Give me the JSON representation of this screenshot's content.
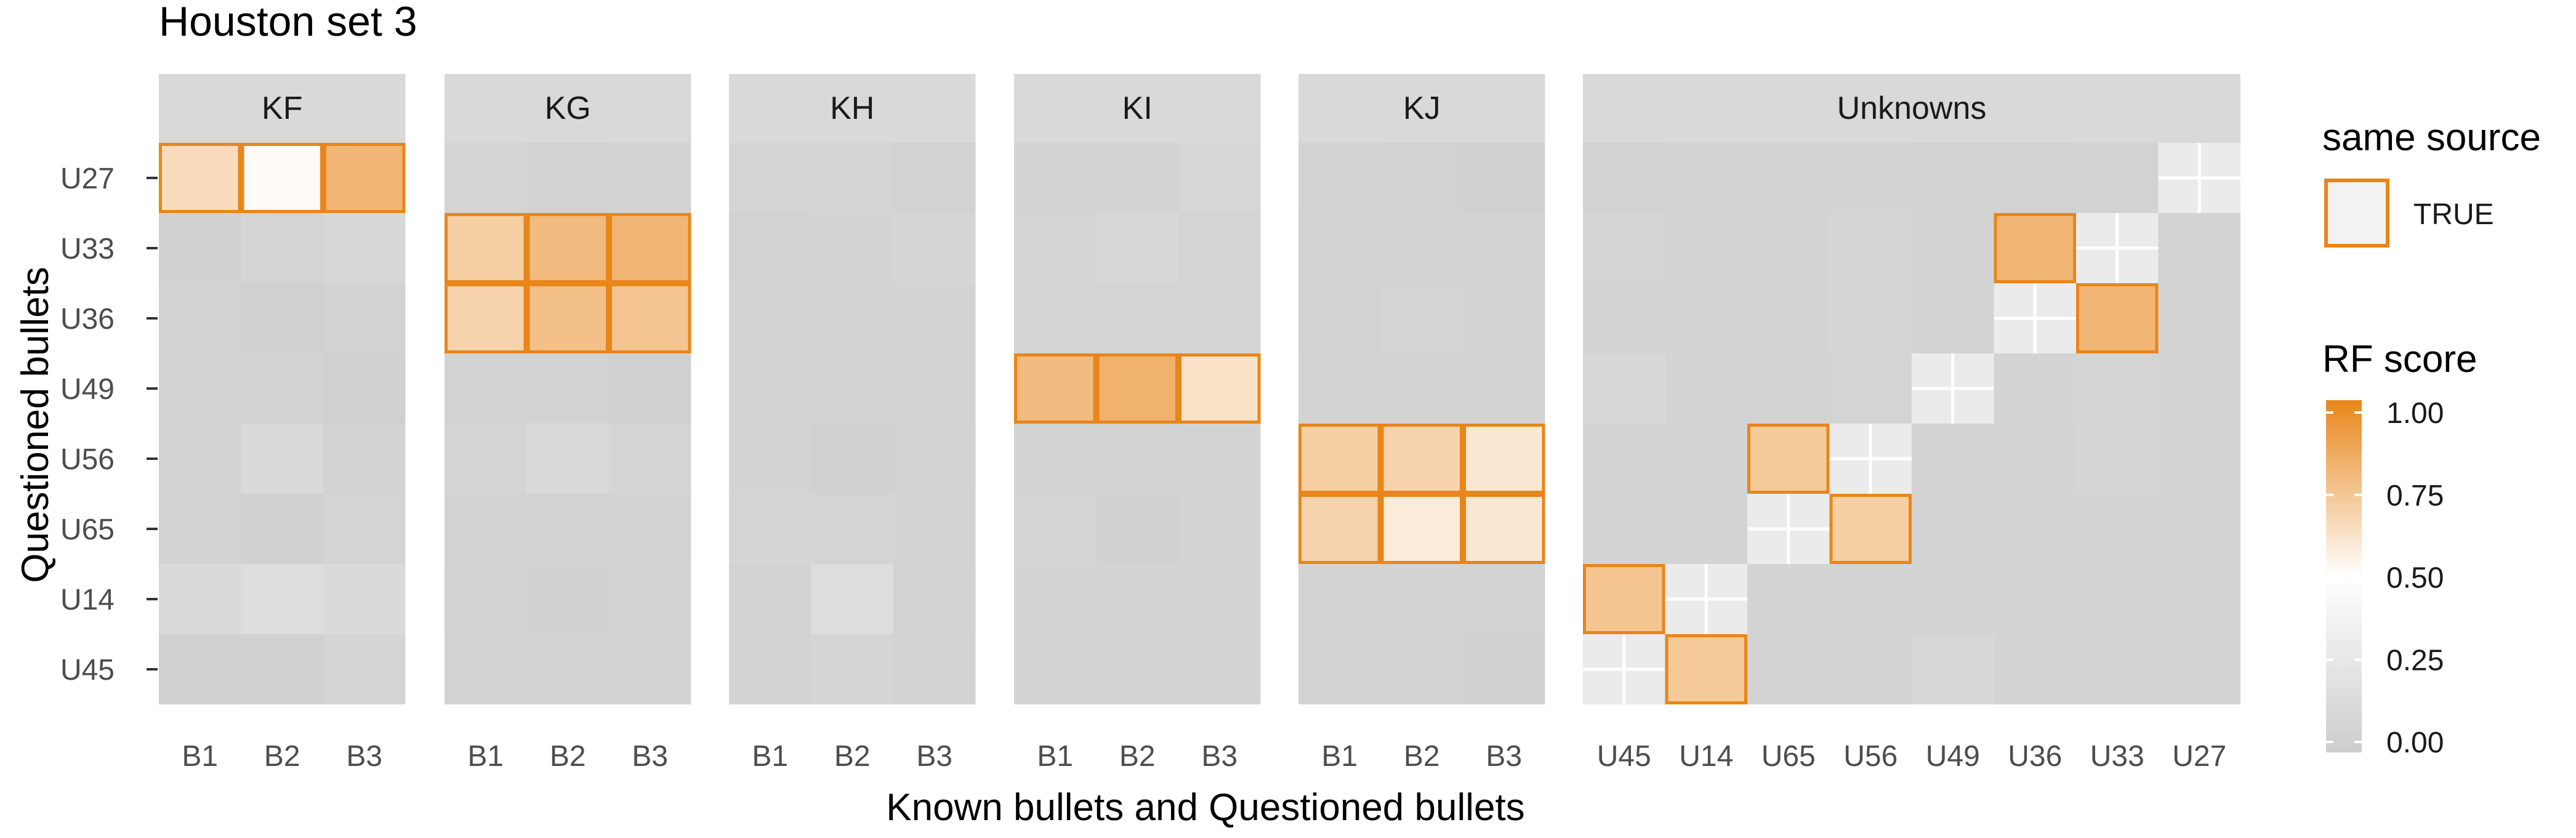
{
  "chart_data": {
    "type": "heatmap",
    "title": "Houston set 3",
    "xlabel": "Known bullets and Questioned bullets",
    "ylabel": "Questioned bullets",
    "rows": [
      "U27",
      "U33",
      "U36",
      "U49",
      "U56",
      "U65",
      "U14",
      "U45"
    ],
    "panels": [
      {
        "label": "KF",
        "columns": [
          "B1",
          "B2",
          "B3"
        ],
        "scores": [
          [
            0.65,
            0.52,
            0.8
          ],
          [
            0.04,
            0.07,
            0.1
          ],
          [
            0.05,
            0.03,
            0.05
          ],
          [
            0.06,
            0.06,
            0.03
          ],
          [
            0.05,
            0.12,
            0.06
          ],
          [
            0.06,
            0.04,
            0.07
          ],
          [
            0.12,
            0.17,
            0.13
          ],
          [
            0.03,
            0.04,
            0.08
          ]
        ],
        "same_source": [
          [
            true,
            true,
            true
          ],
          [
            false,
            false,
            false
          ],
          [
            false,
            false,
            false
          ],
          [
            false,
            false,
            false
          ],
          [
            false,
            false,
            false
          ],
          [
            false,
            false,
            false
          ],
          [
            false,
            false,
            false
          ],
          [
            false,
            false,
            false
          ]
        ]
      },
      {
        "label": "KG",
        "columns": [
          "B1",
          "B2",
          "B3"
        ],
        "scores": [
          [
            0.07,
            0.05,
            0.06
          ],
          [
            0.7,
            0.78,
            0.8
          ],
          [
            0.68,
            0.76,
            0.74
          ],
          [
            0.06,
            0.06,
            0.04
          ],
          [
            0.07,
            0.13,
            0.07
          ],
          [
            0.06,
            0.05,
            0.05
          ],
          [
            0.05,
            0.04,
            0.06
          ],
          [
            0.06,
            0.06,
            0.06
          ]
        ],
        "same_source": [
          [
            false,
            false,
            false
          ],
          [
            true,
            true,
            true
          ],
          [
            true,
            true,
            true
          ],
          [
            false,
            false,
            false
          ],
          [
            false,
            false,
            false
          ],
          [
            false,
            false,
            false
          ],
          [
            false,
            false,
            false
          ],
          [
            false,
            false,
            false
          ]
        ]
      },
      {
        "label": "KH",
        "columns": [
          "B1",
          "B2",
          "B3"
        ],
        "scores": [
          [
            0.08,
            0.07,
            0.05
          ],
          [
            0.05,
            0.06,
            0.08
          ],
          [
            0.06,
            0.05,
            0.06
          ],
          [
            0.06,
            0.06,
            0.06
          ],
          [
            0.06,
            0.04,
            0.05
          ],
          [
            0.08,
            0.07,
            0.06
          ],
          [
            0.06,
            0.16,
            0.05
          ],
          [
            0.06,
            0.08,
            0.06
          ]
        ],
        "same_source": [
          [
            false,
            false,
            false
          ],
          [
            false,
            false,
            false
          ],
          [
            false,
            false,
            false
          ],
          [
            false,
            false,
            false
          ],
          [
            false,
            false,
            false
          ],
          [
            false,
            false,
            false
          ],
          [
            false,
            false,
            false
          ],
          [
            false,
            false,
            false
          ]
        ]
      },
      {
        "label": "KI",
        "columns": [
          "B1",
          "B2",
          "B3"
        ],
        "scores": [
          [
            0.06,
            0.06,
            0.1
          ],
          [
            0.07,
            0.1,
            0.07
          ],
          [
            0.07,
            0.07,
            0.07
          ],
          [
            0.78,
            0.82,
            0.62
          ],
          [
            0.05,
            0.05,
            0.06
          ],
          [
            0.07,
            0.04,
            0.06
          ],
          [
            0.06,
            0.06,
            0.06
          ],
          [
            0.06,
            0.06,
            0.06
          ]
        ],
        "same_source": [
          [
            false,
            false,
            false
          ],
          [
            false,
            false,
            false
          ],
          [
            false,
            false,
            false
          ],
          [
            true,
            true,
            true
          ],
          [
            false,
            false,
            false
          ],
          [
            false,
            false,
            false
          ],
          [
            false,
            false,
            false
          ],
          [
            false,
            false,
            false
          ]
        ]
      },
      {
        "label": "KJ",
        "columns": [
          "B1",
          "B2",
          "B3"
        ],
        "scores": [
          [
            0.06,
            0.05,
            0.03
          ],
          [
            0.05,
            0.05,
            0.06
          ],
          [
            0.05,
            0.07,
            0.05
          ],
          [
            0.06,
            0.06,
            0.06
          ],
          [
            0.7,
            0.68,
            0.6
          ],
          [
            0.68,
            0.58,
            0.6
          ],
          [
            0.06,
            0.06,
            0.06
          ],
          [
            0.06,
            0.06,
            0.04
          ]
        ],
        "same_source": [
          [
            false,
            false,
            false
          ],
          [
            false,
            false,
            false
          ],
          [
            false,
            false,
            false
          ],
          [
            false,
            false,
            false
          ],
          [
            true,
            true,
            true
          ],
          [
            true,
            true,
            true
          ],
          [
            false,
            false,
            false
          ],
          [
            false,
            false,
            false
          ]
        ]
      },
      {
        "label": "Unknowns",
        "columns": [
          "U45",
          "U14",
          "U65",
          "U56",
          "U49",
          "U36",
          "U33",
          "U27"
        ],
        "scores": [
          [
            0.05,
            0.06,
            0.06,
            0.06,
            0.05,
            0.05,
            0.06,
            null
          ],
          [
            0.07,
            0.06,
            0.06,
            0.08,
            0.06,
            0.8,
            null,
            0.06
          ],
          [
            0.06,
            0.06,
            0.06,
            0.08,
            0.06,
            null,
            0.8,
            0.06
          ],
          [
            0.1,
            0.06,
            0.06,
            0.07,
            null,
            0.06,
            0.07,
            0.06
          ],
          [
            0.06,
            0.06,
            0.72,
            null,
            0.06,
            0.06,
            0.08,
            0.06
          ],
          [
            0.06,
            0.06,
            null,
            0.7,
            0.06,
            0.06,
            0.06,
            0.06
          ],
          [
            0.74,
            null,
            0.06,
            0.06,
            0.06,
            0.06,
            0.06,
            0.06
          ],
          [
            null,
            0.72,
            0.06,
            0.06,
            0.1,
            0.06,
            0.06,
            0.06
          ]
        ],
        "same_source": [
          [
            false,
            false,
            false,
            false,
            false,
            false,
            false,
            false
          ],
          [
            false,
            false,
            false,
            false,
            false,
            true,
            false,
            false
          ],
          [
            false,
            false,
            false,
            false,
            false,
            false,
            true,
            false
          ],
          [
            false,
            false,
            false,
            false,
            false,
            false,
            false,
            false
          ],
          [
            false,
            false,
            true,
            false,
            false,
            false,
            false,
            false
          ],
          [
            false,
            false,
            false,
            true,
            false,
            false,
            false,
            false
          ],
          [
            true,
            false,
            false,
            false,
            false,
            false,
            false,
            false
          ],
          [
            false,
            true,
            false,
            false,
            false,
            false,
            false,
            false
          ]
        ]
      }
    ],
    "legend": {
      "same_source_title": "same source",
      "same_source_label": "TRUE",
      "rf_title": "RF score",
      "rf_ticks": [
        "1.00",
        "0.75",
        "0.50",
        "0.25",
        "0.00"
      ],
      "rf_tick_values": [
        1.0,
        0.75,
        0.5,
        0.25,
        0.0
      ],
      "position": "right"
    },
    "colors": {
      "low": "#cdcdcd",
      "mid": "#ffffff",
      "high": "#e8861a",
      "outline": "#e8861a",
      "panel_bg": "#ebebeb",
      "strip_bg": "#d9d9d9"
    },
    "grid": true
  }
}
